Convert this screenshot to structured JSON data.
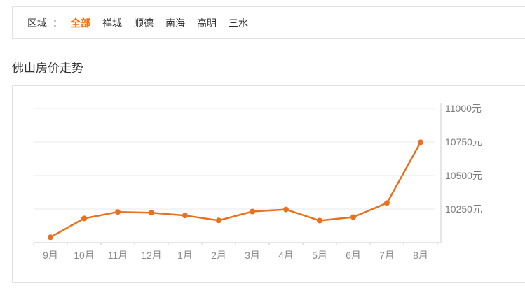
{
  "filter": {
    "label": "区域",
    "separator": "：",
    "regions": [
      {
        "key": "all",
        "label": "全部",
        "active": true
      },
      {
        "key": "chancheng",
        "label": "禅城",
        "active": false
      },
      {
        "key": "shunde",
        "label": "顺德",
        "active": false
      },
      {
        "key": "nanhai",
        "label": "南海",
        "active": false
      },
      {
        "key": "gaoming",
        "label": "高明",
        "active": false
      },
      {
        "key": "sanshui",
        "label": "三水",
        "active": false
      }
    ],
    "active_color": "#ff6600",
    "text_color": "#333333"
  },
  "page": {
    "title": "佛山房价走势"
  },
  "chart_data": {
    "type": "line",
    "title": "佛山房价走势",
    "categories": [
      "9月",
      "10月",
      "11月",
      "12月",
      "1月",
      "2月",
      "3月",
      "4月",
      "5月",
      "6月",
      "7月",
      "8月"
    ],
    "series": [
      {
        "name": "佛山房价",
        "values": [
          10040,
          10180,
          10228,
          10223,
          10202,
          10165,
          10232,
          10247,
          10164,
          10190,
          10295,
          10748
        ]
      }
    ],
    "unit": "元",
    "y_ticks": [
      {
        "value": 10250,
        "label": "10250元"
      },
      {
        "value": 10500,
        "label": "10500元"
      },
      {
        "value": 10750,
        "label": "10750元"
      },
      {
        "value": 11000,
        "label": "11000元"
      }
    ],
    "ylim": [
      10000,
      11050
    ],
    "y_axis_position": "right",
    "grid": true,
    "line_color": "#e8701e",
    "marker": "circle",
    "grid_color": "#e8e8e8",
    "axis_color": "#cccccc",
    "axis_text_color": "#7d7d7d"
  }
}
